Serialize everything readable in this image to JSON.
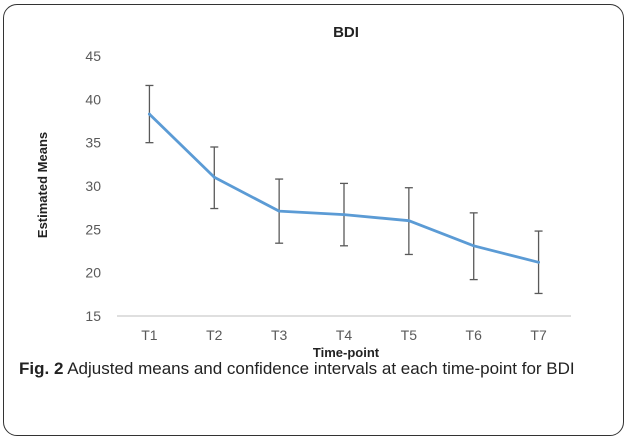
{
  "chart_data": {
    "type": "line",
    "title": "BDI",
    "xlabel": "Time-point",
    "ylabel": "Estimated Means",
    "categories": [
      "T1",
      "T2",
      "T3",
      "T4",
      "T5",
      "T6",
      "T7"
    ],
    "series": [
      {
        "values": [
          38.3,
          31.0,
          27.1,
          26.7,
          26.0,
          23.1,
          21.2
        ],
        "lower": [
          35.0,
          27.4,
          23.4,
          23.1,
          22.1,
          19.2,
          17.6
        ],
        "upper": [
          41.6,
          34.5,
          30.8,
          30.3,
          29.8,
          26.9,
          24.8
        ],
        "color": "#5b9bd5"
      }
    ],
    "ylim": [
      15,
      45
    ],
    "yticks": [
      15,
      20,
      25,
      30,
      35,
      40,
      45
    ],
    "grid": false,
    "legend": "none"
  },
  "caption": {
    "label": "Fig. 2",
    "text": " Adjusted means and confidence intervals at each time-point for BDI"
  }
}
